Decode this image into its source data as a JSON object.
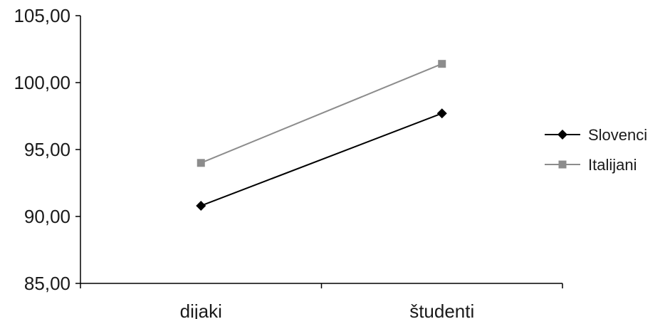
{
  "chart_data": {
    "type": "line",
    "title": "",
    "xlabel": "",
    "ylabel": "",
    "categories": [
      "dijaki",
      "študenti"
    ],
    "ylim": [
      85,
      105
    ],
    "yticks": [
      85,
      90,
      95,
      100,
      105
    ],
    "ytick_labels": [
      "85,00",
      "90,00",
      "95,00",
      "100,00",
      "105,00"
    ],
    "grid": false,
    "legend_position": "right",
    "series": [
      {
        "name": "Slovenci",
        "values": [
          90.8,
          97.7
        ],
        "color": "#000000",
        "marker": "diamond"
      },
      {
        "name": "Italijani",
        "values": [
          94.0,
          101.4
        ],
        "color": "#8c8c8c",
        "marker": "square"
      }
    ]
  }
}
